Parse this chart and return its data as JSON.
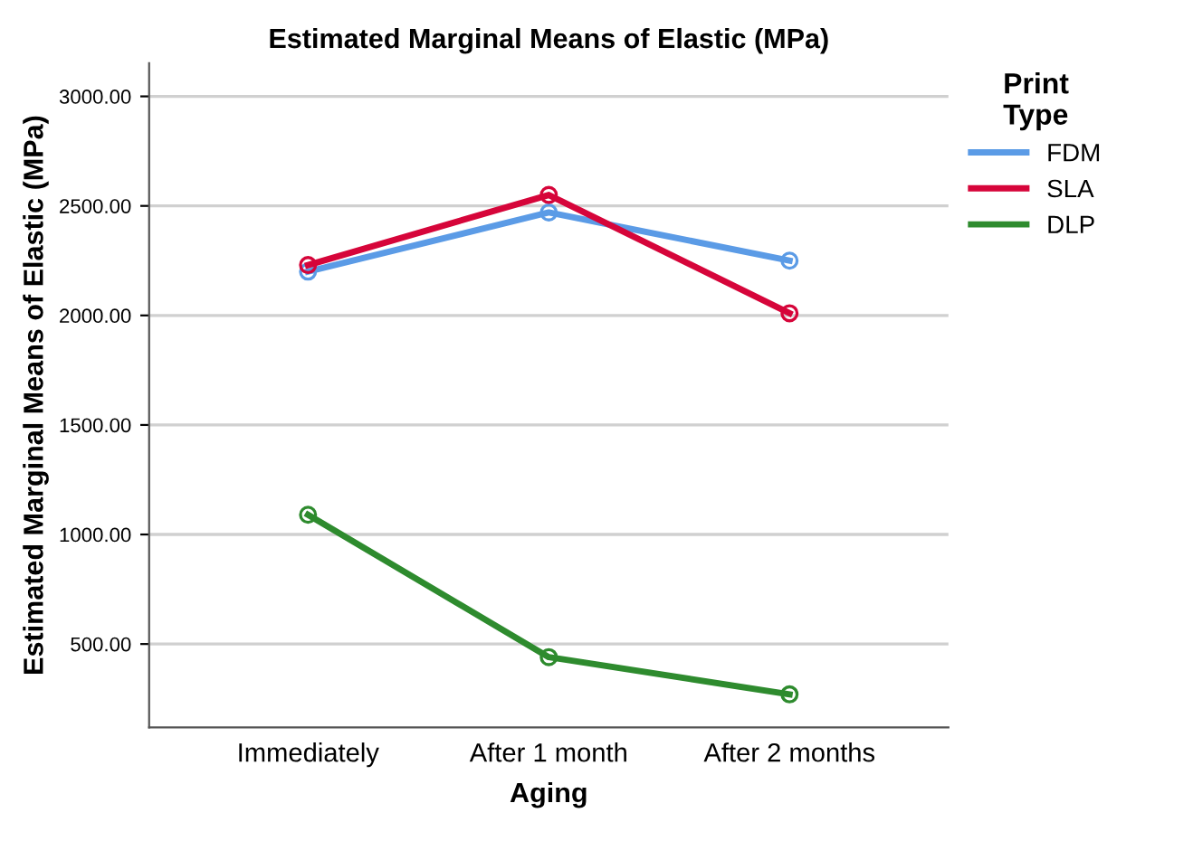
{
  "chart_data": {
    "type": "line",
    "title": "Estimated Marginal Means of Elastic (MPa)",
    "xlabel": "Aging",
    "ylabel": "Estimated Marginal Means of Elastic (MPa)",
    "legend_title": "Print\nType",
    "categories": [
      "Immediately",
      "After 1 month",
      "After 2 months"
    ],
    "series": [
      {
        "name": "FDM",
        "color": "#5b9be6",
        "values": [
          2200,
          2470,
          2250
        ]
      },
      {
        "name": "SLA",
        "color": "#d6053a",
        "values": [
          2230,
          2550,
          2010
        ]
      },
      {
        "name": "DLP",
        "color": "#2e8b2e",
        "values": [
          1090,
          440,
          270
        ]
      }
    ],
    "ylim": [
      119,
      3152
    ],
    "yticks": [
      {
        "value": 500,
        "label": "500.00"
      },
      {
        "value": 1000,
        "label": "1000.00"
      },
      {
        "value": 1500,
        "label": "1500.00"
      },
      {
        "value": 2000,
        "label": "2000.00"
      },
      {
        "value": 2500,
        "label": "2500.00"
      },
      {
        "value": 3000,
        "label": "3000.00"
      }
    ],
    "grid": "y",
    "legend": "right",
    "marker": "circle",
    "line_style": "solid"
  }
}
